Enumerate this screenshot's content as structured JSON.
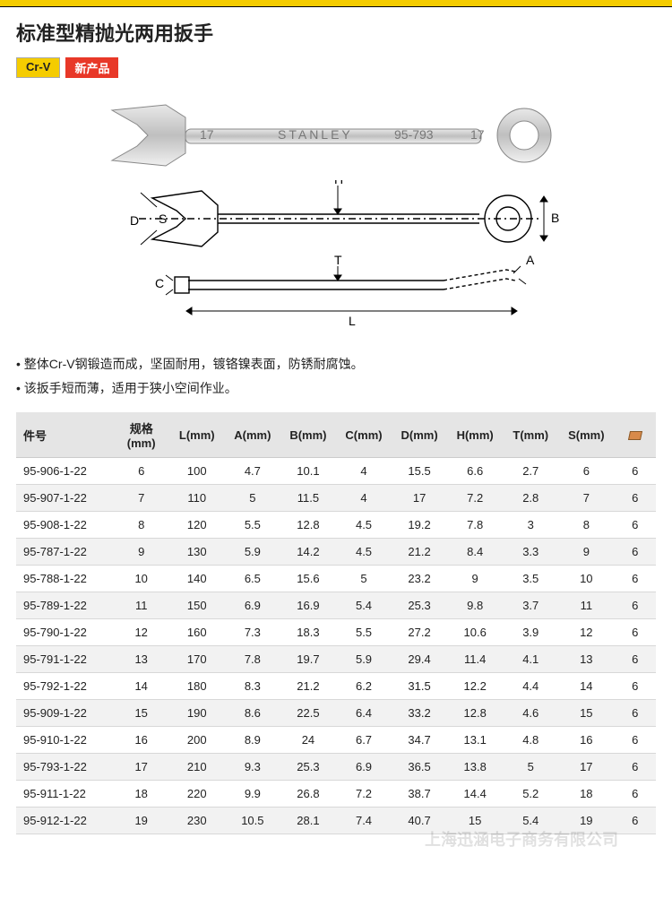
{
  "colors": {
    "brand_yellow": "#f5cc00",
    "brand_red": "#e83828",
    "header_bg": "#e5e5e5",
    "row_alt": "#f2f2f2",
    "border": "#d8d8d8",
    "text": "#222222"
  },
  "title": "标准型精抛光两用扳手",
  "badges": {
    "crv": "Cr-V",
    "new": "新产品"
  },
  "product_image": {
    "brand": "STANLEY",
    "model": "95-793",
    "size_mark": "17"
  },
  "diagram_labels": [
    "H",
    "B",
    "D",
    "S",
    "T",
    "A",
    "C",
    "L"
  ],
  "features": [
    "整体Cr-V钢锻造而成，坚固耐用，镀铬镍表面，防锈耐腐蚀。",
    "该扳手短而薄，适用于狭小空间作业。"
  ],
  "table": {
    "columns": [
      "件号",
      "规格\n(mm)",
      "L(mm)",
      "A(mm)",
      "B(mm)",
      "C(mm)",
      "D(mm)",
      "H(mm)",
      "T(mm)",
      "S(mm)",
      "PACK_ICON"
    ],
    "col_widths_pct": [
      14,
      8,
      8,
      8,
      8,
      8,
      8,
      8,
      8,
      8,
      6
    ],
    "rows": [
      [
        "95-906-1-22",
        "6",
        "100",
        "4.7",
        "10.1",
        "4",
        "15.5",
        "6.6",
        "2.7",
        "6",
        "6"
      ],
      [
        "95-907-1-22",
        "7",
        "110",
        "5",
        "11.5",
        "4",
        "17",
        "7.2",
        "2.8",
        "7",
        "6"
      ],
      [
        "95-908-1-22",
        "8",
        "120",
        "5.5",
        "12.8",
        "4.5",
        "19.2",
        "7.8",
        "3",
        "8",
        "6"
      ],
      [
        "95-787-1-22",
        "9",
        "130",
        "5.9",
        "14.2",
        "4.5",
        "21.2",
        "8.4",
        "3.3",
        "9",
        "6"
      ],
      [
        "95-788-1-22",
        "10",
        "140",
        "6.5",
        "15.6",
        "5",
        "23.2",
        "9",
        "3.5",
        "10",
        "6"
      ],
      [
        "95-789-1-22",
        "11",
        "150",
        "6.9",
        "16.9",
        "5.4",
        "25.3",
        "9.8",
        "3.7",
        "11",
        "6"
      ],
      [
        "95-790-1-22",
        "12",
        "160",
        "7.3",
        "18.3",
        "5.5",
        "27.2",
        "10.6",
        "3.9",
        "12",
        "6"
      ],
      [
        "95-791-1-22",
        "13",
        "170",
        "7.8",
        "19.7",
        "5.9",
        "29.4",
        "11.4",
        "4.1",
        "13",
        "6"
      ],
      [
        "95-792-1-22",
        "14",
        "180",
        "8.3",
        "21.2",
        "6.2",
        "31.5",
        "12.2",
        "4.4",
        "14",
        "6"
      ],
      [
        "95-909-1-22",
        "15",
        "190",
        "8.6",
        "22.5",
        "6.4",
        "33.2",
        "12.8",
        "4.6",
        "15",
        "6"
      ],
      [
        "95-910-1-22",
        "16",
        "200",
        "8.9",
        "24",
        "6.7",
        "34.7",
        "13.1",
        "4.8",
        "16",
        "6"
      ],
      [
        "95-793-1-22",
        "17",
        "210",
        "9.3",
        "25.3",
        "6.9",
        "36.5",
        "13.8",
        "5",
        "17",
        "6"
      ],
      [
        "95-911-1-22",
        "18",
        "220",
        "9.9",
        "26.8",
        "7.2",
        "38.7",
        "14.4",
        "5.2",
        "18",
        "6"
      ],
      [
        "95-912-1-22",
        "19",
        "230",
        "10.5",
        "28.1",
        "7.4",
        "40.7",
        "15",
        "5.4",
        "19",
        "6"
      ]
    ]
  },
  "watermark": "上海迅涵电子商务有限公司"
}
